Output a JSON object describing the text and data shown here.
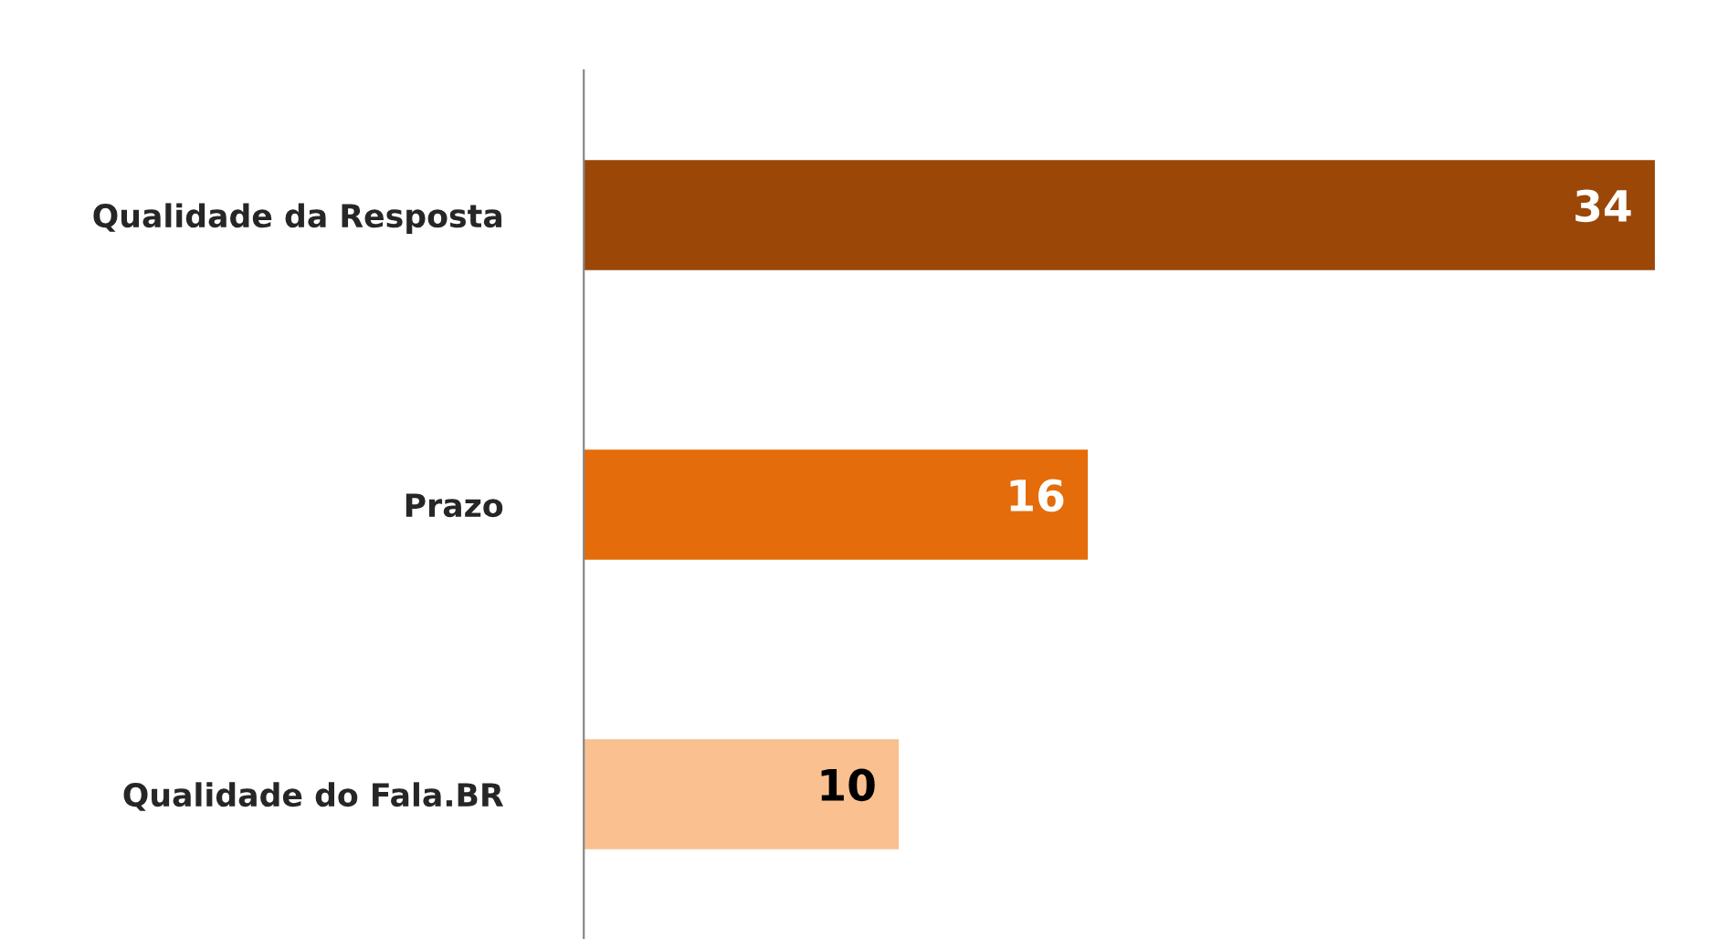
{
  "chart_data": {
    "type": "bar",
    "orientation": "horizontal",
    "categories": [
      "Qualidade da Resposta",
      "Prazo",
      "Qualidade do Fala.BR"
    ],
    "values": [
      34,
      16,
      10
    ],
    "colors": [
      "#9b4708",
      "#e46c0a",
      "#fac090"
    ],
    "data_labels": true,
    "grid": false,
    "legend": false
  }
}
